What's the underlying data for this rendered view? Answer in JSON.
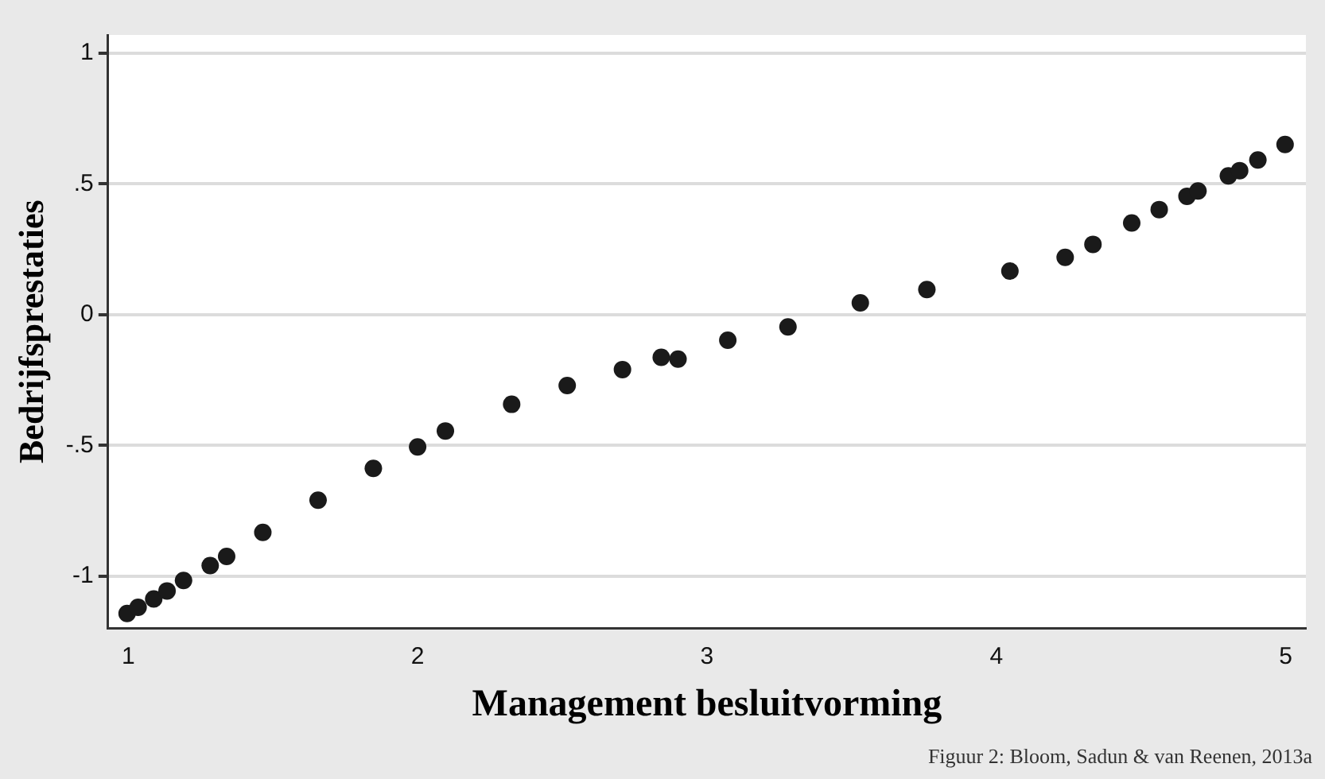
{
  "chart_data": {
    "type": "scatter",
    "xlabel": "Management besluitvorming",
    "ylabel": "Bedrijfsprestaties",
    "annotations": [
      "Figuur 2: Bloom, Sadun & van Reenen, 2013a"
    ],
    "x": [
      0.996,
      1.034,
      1.088,
      1.134,
      1.191,
      1.283,
      1.34,
      1.465,
      1.656,
      1.847,
      2.0,
      2.096,
      2.325,
      2.517,
      2.708,
      2.842,
      2.9,
      3.072,
      3.28,
      3.53,
      3.76,
      4.047,
      4.238,
      4.334,
      4.468,
      4.563,
      4.659,
      4.697,
      4.802,
      4.841,
      4.904,
      4.998
    ],
    "series": [
      {
        "color": "#1a1a1a",
        "values": [
          -1.143,
          -1.12,
          -1.088,
          -1.057,
          -1.017,
          -0.96,
          -0.925,
          -0.833,
          -0.71,
          -0.588,
          -0.506,
          -0.445,
          -0.343,
          -0.271,
          -0.21,
          -0.163,
          -0.17,
          -0.098,
          -0.047,
          0.045,
          0.096,
          0.167,
          0.219,
          0.269,
          0.351,
          0.402,
          0.453,
          0.473,
          0.531,
          0.551,
          0.592,
          0.651
        ]
      }
    ],
    "xlim": [
      0.93,
      5.07
    ],
    "ylim": [
      -1.2,
      1.07
    ],
    "xticks": [
      1,
      2,
      3,
      4,
      5
    ],
    "yticks": [
      -1,
      {
        "value": -0.5,
        "label": "-.5"
      },
      0,
      {
        "value": 0.5,
        "label": ".5"
      },
      1
    ],
    "grid": "y",
    "marker": "circle",
    "legend": false
  }
}
